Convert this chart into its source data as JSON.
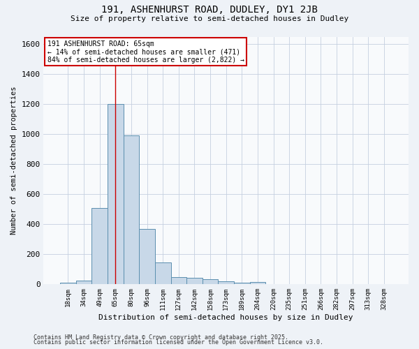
{
  "title_line1": "191, ASHENHURST ROAD, DUDLEY, DY1 2JB",
  "title_line2": "Size of property relative to semi-detached houses in Dudley",
  "xlabel": "Distribution of semi-detached houses by size in Dudley",
  "ylabel": "Number of semi-detached properties",
  "categories": [
    "18sqm",
    "34sqm",
    "49sqm",
    "65sqm",
    "80sqm",
    "96sqm",
    "111sqm",
    "127sqm",
    "142sqm",
    "158sqm",
    "173sqm",
    "189sqm",
    "204sqm",
    "220sqm",
    "235sqm",
    "251sqm",
    "266sqm",
    "282sqm",
    "297sqm",
    "313sqm",
    "328sqm"
  ],
  "values": [
    10,
    25,
    510,
    1200,
    990,
    370,
    145,
    50,
    45,
    35,
    20,
    10,
    15,
    0,
    0,
    0,
    0,
    0,
    0,
    0,
    0
  ],
  "bar_color": "#c8d8e8",
  "bar_edge_color": "#5b8faf",
  "vline_x": 3,
  "vline_color": "#cc0000",
  "annotation_title": "191 ASHENHURST ROAD: 65sqm",
  "annotation_line2": "← 14% of semi-detached houses are smaller (471)",
  "annotation_line3": "84% of semi-detached houses are larger (2,822) →",
  "annotation_box_facecolor": "#ffffff",
  "annotation_box_edgecolor": "#cc0000",
  "ylim": [
    0,
    1650
  ],
  "yticks": [
    0,
    200,
    400,
    600,
    800,
    1000,
    1200,
    1400,
    1600
  ],
  "footer_line1": "Contains HM Land Registry data © Crown copyright and database right 2025.",
  "footer_line2": "Contains public sector information licensed under the Open Government Licence v3.0.",
  "bg_color": "#eef2f7",
  "plot_bg_color": "#f8fafc",
  "grid_color": "#c5cfe0"
}
